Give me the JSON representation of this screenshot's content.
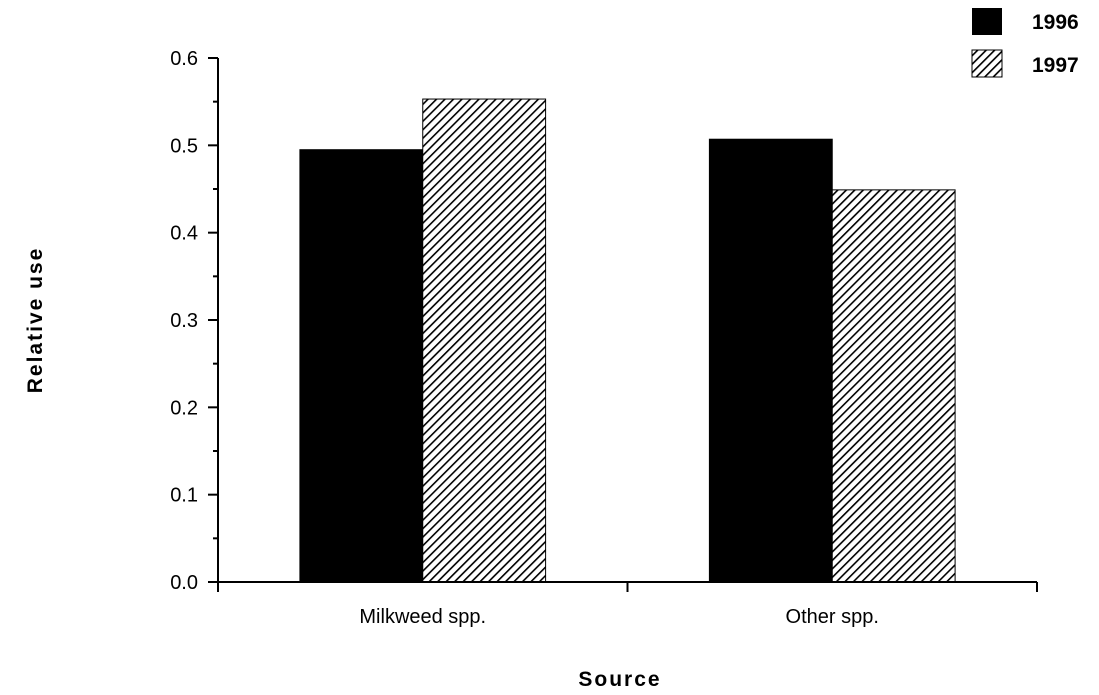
{
  "chart_data": {
    "type": "bar",
    "title": "",
    "xlabel": "Source",
    "ylabel": "Relative  use",
    "categories": [
      "Milkweed spp.",
      "Other spp."
    ],
    "series": [
      {
        "name": "1996",
        "values": [
          0.495,
          0.507
        ],
        "color": "#000000",
        "pattern": "solid"
      },
      {
        "name": "1997",
        "values": [
          0.553,
          0.449
        ],
        "color": "#000000",
        "pattern": "diagonal-hatch"
      }
    ],
    "ylim": [
      0,
      0.6
    ],
    "yticks": [
      "0.0",
      "0.1",
      "0.2",
      "0.3",
      "0.4",
      "0.5",
      "0.6"
    ],
    "grid": false,
    "legend_position": "top-right"
  }
}
